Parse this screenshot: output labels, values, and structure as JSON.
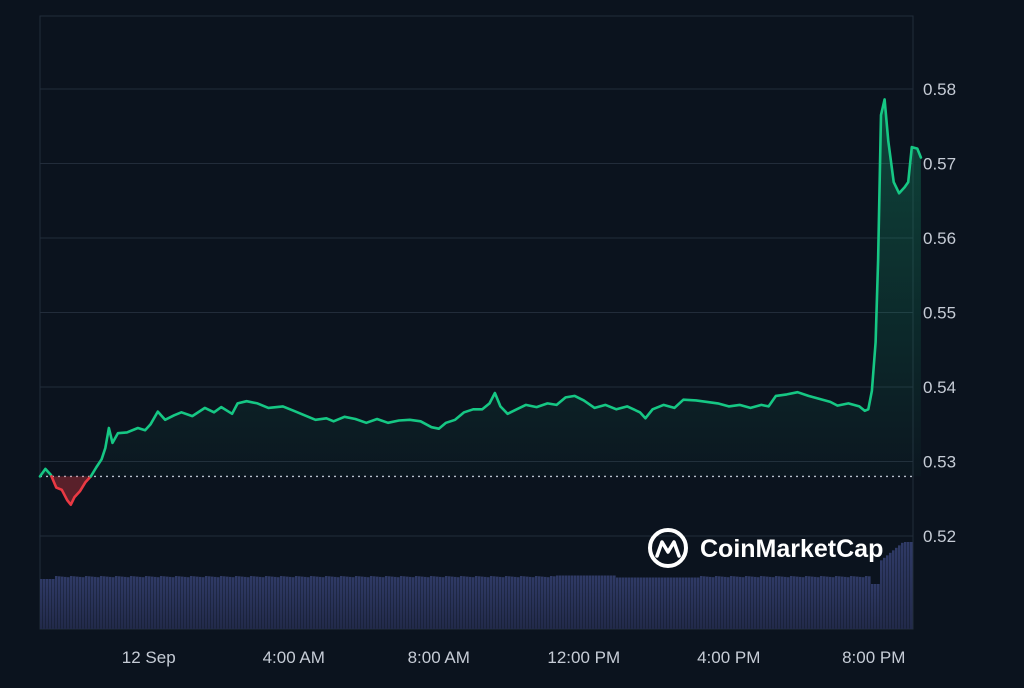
{
  "chart_data": {
    "type": "line",
    "title": "",
    "xlabel": "",
    "ylabel": "",
    "x_unit": "hours since chart start",
    "xlim": [
      0,
      24
    ],
    "ylim": [
      0.51,
      0.59
    ],
    "y_ticks": [
      "0.52",
      "0.53",
      "0.54",
      "0.55",
      "0.56",
      "0.57",
      "0.58"
    ],
    "x_ticks": [
      {
        "x": 3,
        "label": "12 Sep"
      },
      {
        "x": 7,
        "label": "4:00 AM"
      },
      {
        "x": 11,
        "label": "8:00 AM"
      },
      {
        "x": 15,
        "label": "12:00 PM"
      },
      {
        "x": 19,
        "label": "4:00 PM"
      },
      {
        "x": 23,
        "label": "8:00 PM"
      }
    ],
    "grid": true,
    "legend": "none",
    "reference_price": 0.528,
    "series": [
      {
        "values": [
          [
            0.0,
            0.528
          ],
          [
            0.15,
            0.529
          ],
          [
            0.3,
            0.5282
          ],
          [
            0.45,
            0.5265
          ],
          [
            0.6,
            0.5262
          ],
          [
            0.75,
            0.5248
          ],
          [
            0.85,
            0.5242
          ],
          [
            0.95,
            0.5252
          ],
          [
            1.1,
            0.526
          ],
          [
            1.25,
            0.5272
          ],
          [
            1.4,
            0.528
          ],
          [
            1.55,
            0.5292
          ],
          [
            1.7,
            0.5303
          ],
          [
            1.8,
            0.5318
          ],
          [
            1.9,
            0.5345
          ],
          [
            2.0,
            0.5325
          ],
          [
            2.15,
            0.5338
          ],
          [
            2.4,
            0.5339
          ],
          [
            2.7,
            0.5345
          ],
          [
            2.9,
            0.5342
          ],
          [
            3.05,
            0.535
          ],
          [
            3.25,
            0.5367
          ],
          [
            3.45,
            0.5356
          ],
          [
            3.7,
            0.5362
          ],
          [
            3.9,
            0.5366
          ],
          [
            4.2,
            0.5361
          ],
          [
            4.55,
            0.5372
          ],
          [
            4.8,
            0.5366
          ],
          [
            5.0,
            0.5373
          ],
          [
            5.3,
            0.5364
          ],
          [
            5.45,
            0.5378
          ],
          [
            5.7,
            0.5381
          ],
          [
            6.0,
            0.5378
          ],
          [
            6.3,
            0.5372
          ],
          [
            6.7,
            0.5374
          ],
          [
            7.0,
            0.5368
          ],
          [
            7.3,
            0.5362
          ],
          [
            7.6,
            0.5356
          ],
          [
            7.9,
            0.5358
          ],
          [
            8.1,
            0.5354
          ],
          [
            8.4,
            0.536
          ],
          [
            8.7,
            0.5357
          ],
          [
            9.0,
            0.5352
          ],
          [
            9.3,
            0.5357
          ],
          [
            9.6,
            0.5352
          ],
          [
            9.9,
            0.5355
          ],
          [
            10.2,
            0.5356
          ],
          [
            10.5,
            0.5354
          ],
          [
            10.8,
            0.5346
          ],
          [
            11.0,
            0.5344
          ],
          [
            11.2,
            0.5352
          ],
          [
            11.45,
            0.5356
          ],
          [
            11.7,
            0.5366
          ],
          [
            11.95,
            0.537
          ],
          [
            12.2,
            0.537
          ],
          [
            12.4,
            0.5378
          ],
          [
            12.55,
            0.5392
          ],
          [
            12.7,
            0.5374
          ],
          [
            12.9,
            0.5364
          ],
          [
            13.15,
            0.537
          ],
          [
            13.4,
            0.5376
          ],
          [
            13.7,
            0.5373
          ],
          [
            14.0,
            0.5378
          ],
          [
            14.25,
            0.5376
          ],
          [
            14.5,
            0.5386
          ],
          [
            14.75,
            0.5388
          ],
          [
            15.0,
            0.5382
          ],
          [
            15.3,
            0.5372
          ],
          [
            15.6,
            0.5376
          ],
          [
            15.9,
            0.537
          ],
          [
            16.2,
            0.5374
          ],
          [
            16.55,
            0.5366
          ],
          [
            16.7,
            0.5358
          ],
          [
            16.9,
            0.537
          ],
          [
            17.2,
            0.5376
          ],
          [
            17.5,
            0.5372
          ],
          [
            17.75,
            0.5383
          ],
          [
            18.1,
            0.5382
          ],
          [
            18.4,
            0.538
          ],
          [
            18.7,
            0.5378
          ],
          [
            19.0,
            0.5374
          ],
          [
            19.3,
            0.5376
          ],
          [
            19.6,
            0.5372
          ],
          [
            19.9,
            0.5376
          ],
          [
            20.1,
            0.5374
          ],
          [
            20.3,
            0.5388
          ],
          [
            20.6,
            0.539
          ],
          [
            20.9,
            0.5393
          ],
          [
            21.2,
            0.5388
          ],
          [
            21.5,
            0.5384
          ],
          [
            21.8,
            0.538
          ],
          [
            22.0,
            0.5375
          ],
          [
            22.3,
            0.5378
          ],
          [
            22.6,
            0.5374
          ],
          [
            22.75,
            0.5368
          ],
          [
            22.85,
            0.537
          ],
          [
            22.95,
            0.5395
          ],
          [
            23.05,
            0.546
          ],
          [
            23.12,
            0.557
          ],
          [
            23.2,
            0.5765
          ],
          [
            23.3,
            0.5786
          ],
          [
            23.4,
            0.573
          ],
          [
            23.55,
            0.5675
          ],
          [
            23.7,
            0.566
          ],
          [
            23.85,
            0.5668
          ],
          [
            23.95,
            0.5675
          ],
          [
            24.05,
            0.5722
          ],
          [
            24.2,
            0.572
          ],
          [
            24.3,
            0.5708
          ]
        ]
      }
    ]
  }
}
